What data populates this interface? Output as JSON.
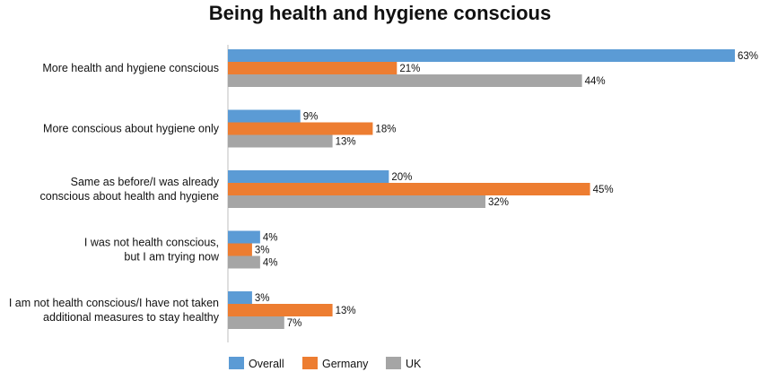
{
  "chart_data": {
    "type": "bar",
    "orientation": "horizontal",
    "title": "Being health and hygiene conscious",
    "categories": [
      [
        "More health and hygiene conscious"
      ],
      [
        "More conscious about hygiene only"
      ],
      [
        "Same as before/I was already",
        "conscious about health and hygiene"
      ],
      [
        "I was not health conscious,",
        "but I am trying now"
      ],
      [
        "I am not health conscious/I have not taken",
        "additional measures to stay healthy"
      ]
    ],
    "series": [
      {
        "name": "Overall",
        "color": "#5b9bd5",
        "values": [
          63,
          9,
          20,
          4,
          3
        ]
      },
      {
        "name": "Germany",
        "color": "#ed7d31",
        "values": [
          21,
          18,
          45,
          3,
          13
        ]
      },
      {
        "name": "UK",
        "color": "#a5a5a5",
        "values": [
          44,
          13,
          32,
          4,
          7
        ]
      }
    ],
    "value_suffix": "%",
    "xlim": [
      0,
      63
    ],
    "legend": "bottom",
    "grid": false
  }
}
